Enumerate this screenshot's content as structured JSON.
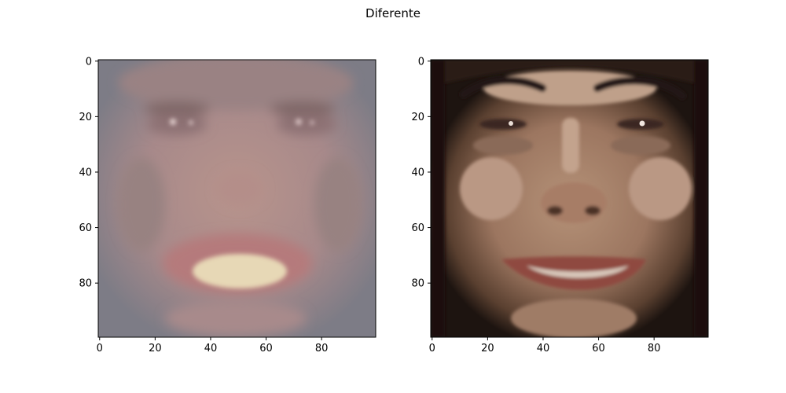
{
  "figure": {
    "suptitle": "Diferente"
  },
  "chart_data": [
    {
      "type": "image",
      "panel": "left",
      "content": "blurred reconstructed face (smiling man), low contrast, greyish-pink tones",
      "xlim": [
        0,
        99
      ],
      "ylim": [
        99,
        0
      ],
      "xticks": [
        0,
        20,
        40,
        60,
        80
      ],
      "yticks": [
        0,
        20,
        40,
        60,
        80
      ],
      "xtick_labels": [
        "0",
        "20",
        "40",
        "60",
        "80"
      ],
      "ytick_labels": [
        "0",
        "20",
        "40",
        "60",
        "80"
      ],
      "colors": {
        "background": "#a88c86",
        "edge": "#6f7481",
        "mouth": "#b7777a",
        "teeth": "#e6d6b3"
      }
    },
    {
      "type": "image",
      "panel": "right",
      "content": "sharp photo of a smiling face with dark hair, warm skin tones",
      "xlim": [
        0,
        99
      ],
      "ylim": [
        99,
        0
      ],
      "xticks": [
        0,
        20,
        40,
        60,
        80
      ],
      "yticks": [
        0,
        20,
        40,
        60,
        80
      ],
      "xtick_labels": [
        "0",
        "20",
        "40",
        "60",
        "80"
      ],
      "ytick_labels": [
        "0",
        "20",
        "40",
        "60",
        "80"
      ],
      "colors": {
        "background": "#1d1410",
        "skin": "#ad8a6f",
        "hair": "#2a1a12",
        "mouth": "#8f4a40",
        "teeth": "#d8c7ba"
      }
    }
  ]
}
